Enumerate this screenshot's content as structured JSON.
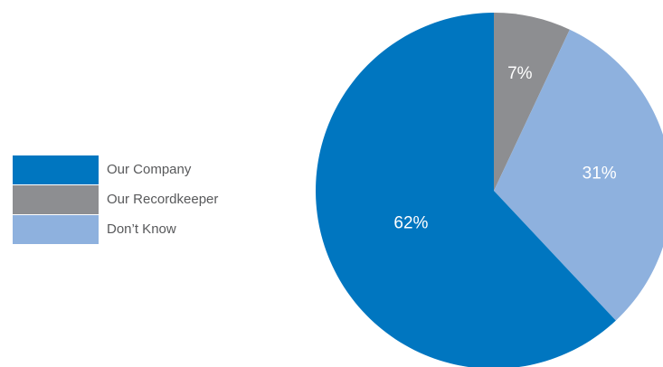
{
  "chart_data": {
    "type": "pie",
    "title": "",
    "categories": [
      "Our Company",
      "Our Recordkeeper",
      "Don’t Know"
    ],
    "values": [
      62,
      7,
      31
    ],
    "labels": [
      "62%",
      "7%",
      "31%"
    ],
    "colors": [
      "#0076c0",
      "#8d8e91",
      "#8eb1de"
    ],
    "legend_position": "left",
    "start": "12 o'clock",
    "order": [
      "Our Recordkeeper",
      "Don’t Know",
      "Our Company"
    ]
  }
}
